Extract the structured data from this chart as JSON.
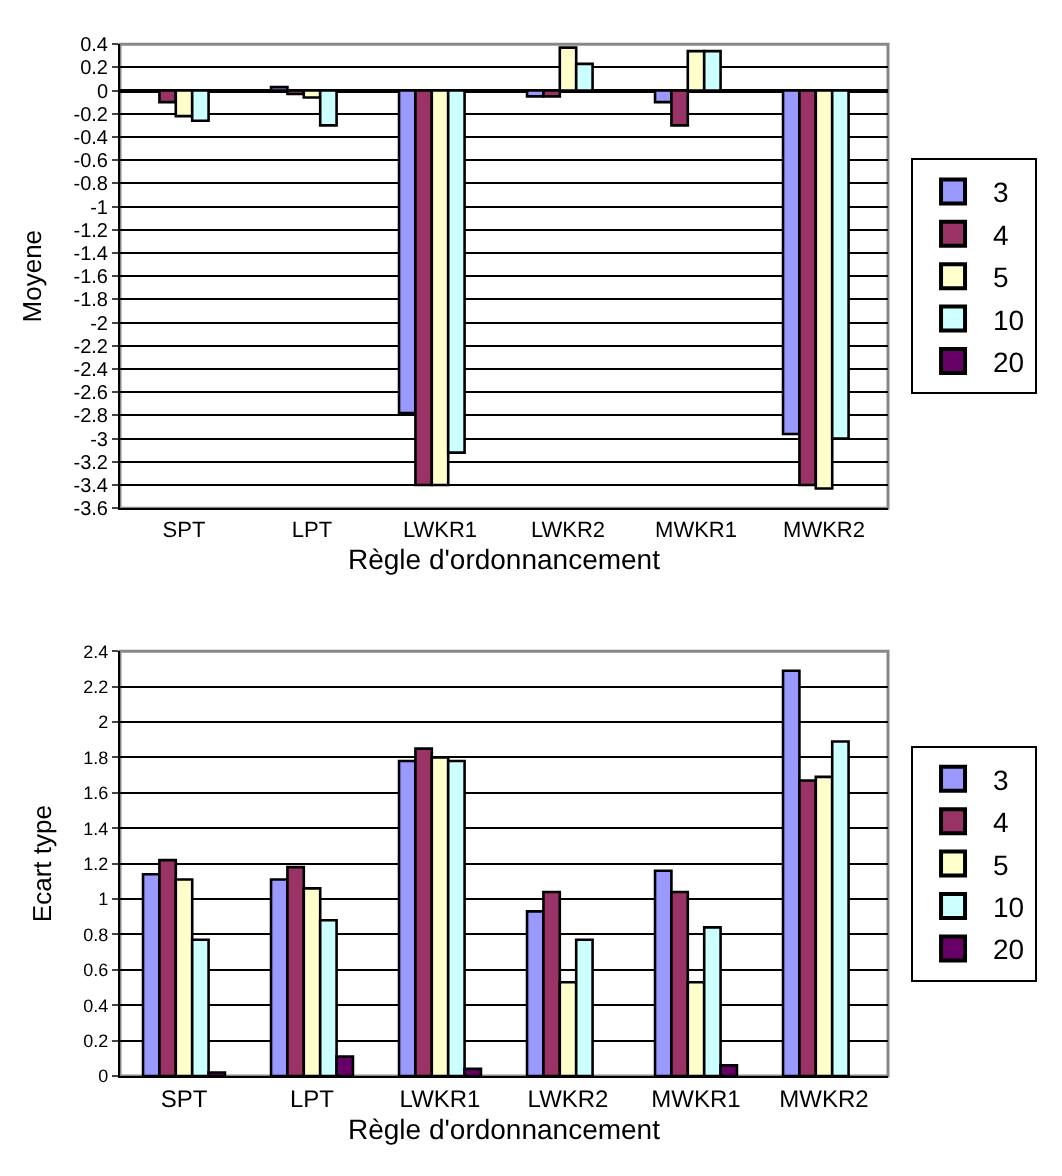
{
  "chart_data": [
    {
      "type": "bar",
      "xlabel": "Règle d'ordonnancement",
      "ylabel": "Moyene",
      "categories": [
        "SPT",
        "LPT",
        "LWKR1",
        "LWKR2",
        "MWKR1",
        "MWKR2"
      ],
      "series": [
        {
          "name": "3",
          "color": "#9999ff",
          "values": [
            null,
            0.03,
            -2.78,
            -0.05,
            -0.1,
            -2.96
          ]
        },
        {
          "name": "4",
          "color": "#993366",
          "values": [
            -0.1,
            -0.03,
            -3.4,
            -0.05,
            -0.3,
            -3.4
          ]
        },
        {
          "name": "5",
          "color": "#ffffcc",
          "values": [
            -0.22,
            -0.06,
            -3.4,
            0.37,
            0.34,
            -3.43
          ]
        },
        {
          "name": "10",
          "color": "#ccffff",
          "values": [
            -0.26,
            -0.3,
            -3.12,
            0.23,
            0.34,
            -3.0
          ]
        },
        {
          "name": "20",
          "color": "#660066",
          "values": [
            null,
            null,
            null,
            null,
            null,
            null
          ]
        }
      ],
      "ylim": [
        -3.6,
        0.4
      ],
      "yticks": [
        {
          "value": -3.6,
          "label": "-3.6"
        },
        {
          "value": -3.4,
          "label": "-3.4"
        },
        {
          "value": -3.2,
          "label": "-3.2"
        },
        {
          "value": -3,
          "label": "-3"
        },
        {
          "value": -2.8,
          "label": "-2.8"
        },
        {
          "value": -2.6,
          "label": "-2.6"
        },
        {
          "value": -2.4,
          "label": "-2.4"
        },
        {
          "value": -2.2,
          "label": "-2.2"
        },
        {
          "value": -2,
          "label": "-2"
        },
        {
          "value": -1.8,
          "label": "-1.8"
        },
        {
          "value": -1.6,
          "label": "-1.6"
        },
        {
          "value": -1.4,
          "label": "-1.4"
        },
        {
          "value": -1.2,
          "label": "-1.2"
        },
        {
          "value": -1,
          "label": "-1"
        },
        {
          "value": -0.8,
          "label": "-0.8"
        },
        {
          "value": -0.6,
          "label": "-0.6"
        },
        {
          "value": -0.4,
          "label": "-0.4"
        },
        {
          "value": -0.2,
          "label": "-0.2"
        },
        0,
        0.2,
        0.4
      ],
      "grid": "y",
      "legend": "right"
    },
    {
      "type": "bar",
      "xlabel": "Règle d'ordonnancement",
      "ylabel": "Ecart type",
      "categories": [
        "SPT",
        "LPT",
        "LWKR1",
        "LWKR2",
        "MWKR1",
        "MWKR2"
      ],
      "series": [
        {
          "name": "3",
          "color": "#9999ff",
          "values": [
            1.14,
            1.11,
            1.78,
            0.93,
            1.16,
            2.29
          ]
        },
        {
          "name": "4",
          "color": "#993366",
          "values": [
            1.22,
            1.18,
            1.85,
            1.04,
            1.04,
            1.67
          ]
        },
        {
          "name": "5",
          "color": "#ffffcc",
          "values": [
            1.11,
            1.06,
            1.8,
            0.53,
            0.53,
            1.69
          ]
        },
        {
          "name": "10",
          "color": "#ccffff",
          "values": [
            0.77,
            0.88,
            1.78,
            0.77,
            0.84,
            1.89
          ]
        },
        {
          "name": "20",
          "color": "#660066",
          "values": [
            0.02,
            0.11,
            0.04,
            null,
            0.06,
            null
          ]
        }
      ],
      "ylim": [
        0,
        2.4
      ],
      "yticks": [
        0,
        0.2,
        0.4,
        0.6,
        0.8,
        1,
        1.2,
        1.4,
        1.6,
        1.8,
        2,
        2.2,
        2.4
      ],
      "grid": "y",
      "legend": "right"
    }
  ]
}
